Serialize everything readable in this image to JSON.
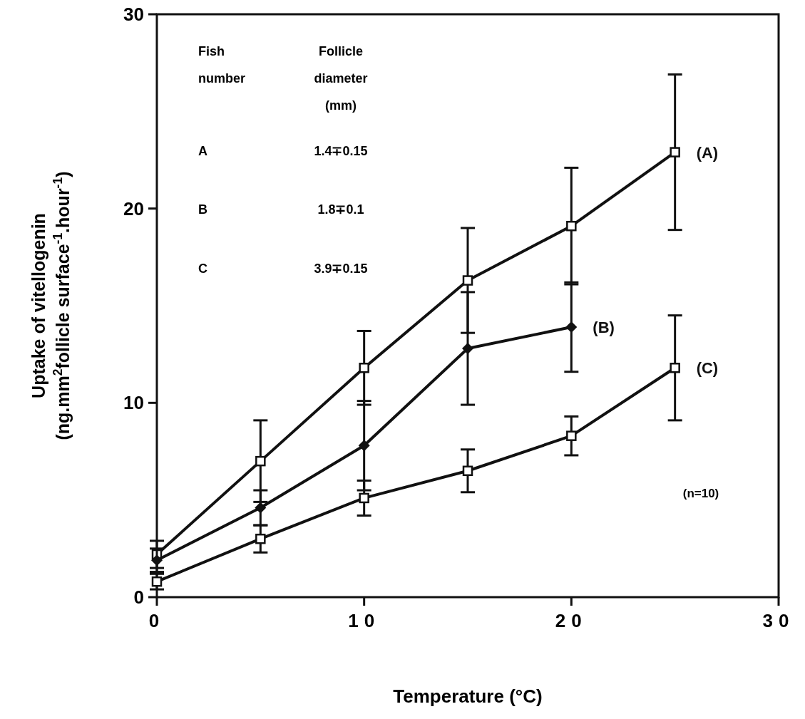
{
  "chart_data": {
    "type": "line",
    "xlabel": "Temperature (°C)",
    "ylabel": "Uptake of vitellogenin\n(ng.mm$^{2}$follicle surface$^{-1}$.hour$^{-1}$)",
    "x": [
      0,
      5,
      10,
      15,
      20,
      25
    ],
    "series": [
      {
        "name": "(A)",
        "color": "#111111",
        "marker": "square",
        "values": [
          2.2,
          7.0,
          11.8,
          16.3,
          19.1,
          22.9
        ],
        "errors": [
          0.7,
          2.1,
          1.9,
          2.7,
          3.0,
          4.0
        ]
      },
      {
        "name": "(B)",
        "color": "#111111",
        "marker": "diamond",
        "values": [
          1.9,
          4.6,
          7.8,
          12.8,
          13.9,
          null
        ],
        "errors": [
          0.6,
          0.9,
          2.3,
          2.9,
          2.3,
          null
        ]
      },
      {
        "name": "(C)",
        "color": "#111111",
        "marker": "square",
        "values": [
          0.8,
          3.0,
          5.1,
          6.5,
          8.3,
          11.8
        ],
        "errors": [
          0.4,
          0.7,
          0.9,
          1.1,
          1.0,
          2.7
        ]
      }
    ],
    "xlim": [
      0,
      30
    ],
    "xticks": [
      0,
      10,
      20,
      30
    ],
    "ylim": [
      0,
      30
    ],
    "yticks": [
      0,
      10,
      20,
      30
    ],
    "annotations": [
      "Fish number",
      "Follicle diameter (mm)",
      "A",
      "1.4∓0.15",
      "B",
      "1.8∓0.1",
      "C",
      "3.9∓0.15",
      "(n=10)"
    ],
    "grid": false,
    "line_style": "solid"
  }
}
